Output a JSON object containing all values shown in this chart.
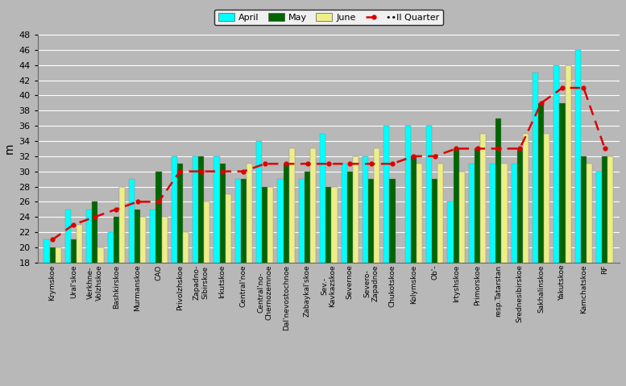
{
  "categories": [
    "Krymskoe",
    "Ural'skoe",
    "Verkhnе-\nVolzhskoe",
    "Bashkirskoe",
    "Murmanskoe",
    "CAO",
    "Privolzhskoe",
    "Zapadno-\nSibirskoe",
    "Irkutskoe",
    "Central'noe",
    "Central'no-\nChernozemnoe",
    "Dal'nevostochnoe",
    "Zabaykal'skoe",
    "Sev.-\nKavkazskoe",
    "Severnoe",
    "Severo-\nZapadnoe",
    "Chukotskoe",
    "Kolymskoe",
    "Ob'-",
    "Irtyshskoe",
    "Primorskoe",
    "resp.Tatarstan",
    "Srednesibirskoe",
    "Sakhalinskoe",
    "Yakutskoe",
    "Kamchatskoe",
    "RF"
  ],
  "april": [
    21,
    25,
    25,
    22,
    29,
    25,
    32,
    32,
    32,
    29,
    34,
    29,
    29,
    35,
    31,
    32,
    36,
    36,
    36,
    26,
    31,
    31,
    31,
    43,
    44,
    46,
    30
  ],
  "may": [
    20,
    21,
    26,
    24,
    25,
    30,
    31,
    32,
    31,
    29,
    28,
    31,
    30,
    28,
    30,
    29,
    29,
    32,
    29,
    33,
    33,
    37,
    33,
    39,
    39,
    32,
    32
  ],
  "june": [
    20,
    23,
    20,
    28,
    24,
    24,
    22,
    26,
    27,
    31,
    28,
    33,
    33,
    28,
    32,
    33,
    17,
    31,
    31,
    30,
    35,
    31,
    35,
    35,
    44,
    31,
    32
  ],
  "quarter": [
    21,
    23,
    24,
    25,
    26,
    26,
    30,
    30,
    30,
    30,
    31,
    31,
    31,
    31,
    31,
    31,
    31,
    32,
    32,
    33,
    33,
    33,
    33,
    39,
    41,
    41,
    33
  ],
  "colors": {
    "april": "#00FFFF",
    "may": "#006400",
    "june": "#EEEE88",
    "quarter_line": "#DD0000"
  },
  "ylim": [
    18,
    48
  ],
  "yticks": [
    18,
    20,
    22,
    24,
    26,
    28,
    30,
    32,
    34,
    36,
    38,
    40,
    42,
    44,
    46,
    48
  ],
  "ylabel": "m",
  "plot_bg": "#B8B8B8",
  "fig_bg": "#B8B8B8",
  "legend_labels": [
    "April",
    "May",
    "June",
    "II Quarter"
  ]
}
